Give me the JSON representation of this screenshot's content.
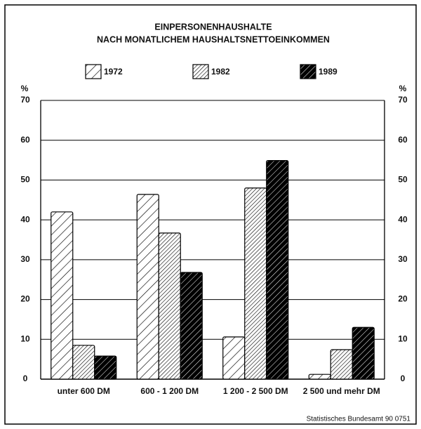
{
  "chart_data": {
    "type": "bar",
    "title": [
      "EINPERSONENHAUSHALTE",
      "NACH MONATLICHEM HAUSHALTSNETTOEINKOMMEN"
    ],
    "y_unit": "%",
    "categories": [
      "unter 600 DM",
      "600 - 1 200 DM",
      "1 200 - 2 500 DM",
      "2 500 und mehr DM"
    ],
    "series": [
      {
        "name": "1972",
        "color": "#000000",
        "pattern": "sparse",
        "values": [
          42,
          46.4,
          10.6,
          1.2
        ]
      },
      {
        "name": "1982",
        "color": "#000000",
        "pattern": "dense",
        "values": [
          8.5,
          36.7,
          48,
          7.4
        ]
      },
      {
        "name": "1989",
        "color": "#000000",
        "pattern": "dark",
        "values": [
          5.8,
          26.8,
          54.9,
          13
        ]
      }
    ],
    "ylim": [
      0,
      70
    ],
    "yticks": [
      0,
      10,
      20,
      30,
      40,
      50,
      60,
      70
    ],
    "grid": true,
    "source": "Statistisches Bundesamt 90 0751"
  }
}
